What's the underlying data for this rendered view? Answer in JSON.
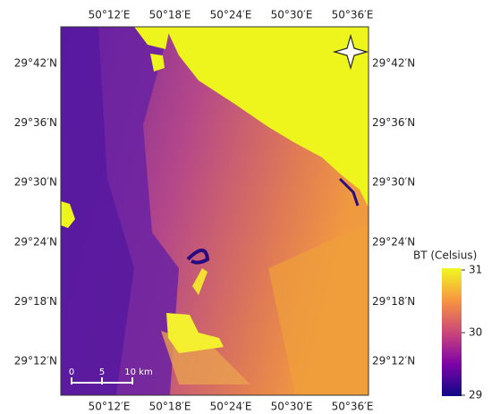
{
  "map": {
    "lon_labels_top": [
      "50°12′E",
      "50°18′E",
      "50°24′E",
      "50°30′E",
      "50°36′E"
    ],
    "lon_labels_bottom": [
      "50°12′E",
      "50°18′E",
      "50°24′E",
      "50°30′E",
      "50°36′E"
    ],
    "lat_labels_left": [
      "29°42′N",
      "29°36′N",
      "29°30′N",
      "29°24′N",
      "29°18′N",
      "29°12′N"
    ],
    "lat_labels_right": [
      "29°42′N",
      "29°36′N",
      "29°30′N",
      "29°24′N",
      "29°18′N",
      "29°12′N"
    ],
    "scale_bar": [
      "0",
      "5",
      "10 km"
    ]
  },
  "colorbar": {
    "title": "BT (Celsius)",
    "lim": [
      29,
      31
    ],
    "ticks": [
      31,
      30,
      29
    ]
  }
}
